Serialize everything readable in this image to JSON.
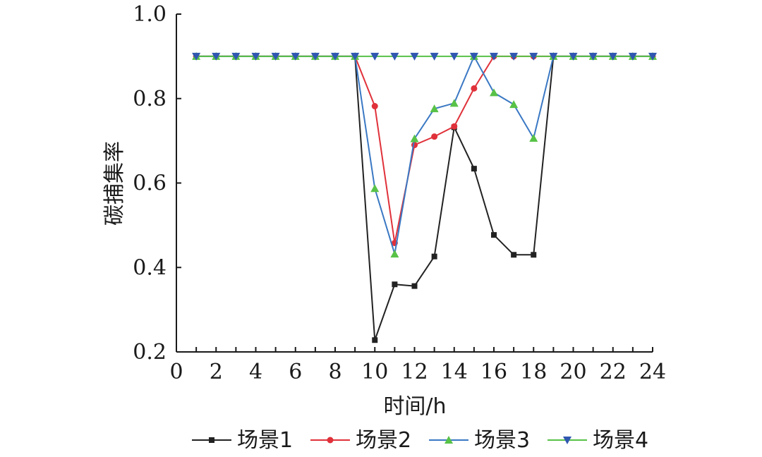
{
  "chart_data": {
    "type": "line",
    "title": "",
    "xlabel": "时间/h",
    "ylabel": "碳捕集率",
    "xlim": [
      0,
      24
    ],
    "ylim": [
      0.2,
      1.0
    ],
    "x_ticks": [
      "0",
      "2",
      "4",
      "6",
      "8",
      "10",
      "12",
      "14",
      "16",
      "18",
      "20",
      "22",
      "24"
    ],
    "y_ticks": [
      "0.2",
      "0.4",
      "0.6",
      "0.8",
      "1.0"
    ],
    "grid": false,
    "legend_position": "bottom",
    "x": [
      1,
      2,
      3,
      4,
      5,
      6,
      7,
      8,
      9,
      10,
      11,
      12,
      13,
      14,
      15,
      16,
      17,
      18,
      19,
      20,
      21,
      22,
      23,
      24
    ],
    "series": [
      {
        "name": "场景1",
        "color": "#222222",
        "marker": "square",
        "values": [
          0.9,
          0.9,
          0.9,
          0.9,
          0.9,
          0.9,
          0.9,
          0.9,
          0.9,
          0.228,
          0.36,
          0.356,
          0.426,
          0.732,
          0.634,
          0.477,
          0.43,
          0.43,
          0.9,
          0.9,
          0.9,
          0.9,
          0.9,
          0.9
        ]
      },
      {
        "name": "场景2",
        "color": "#e0313a",
        "marker": "circle",
        "values": [
          0.9,
          0.9,
          0.9,
          0.9,
          0.9,
          0.9,
          0.9,
          0.9,
          0.9,
          0.782,
          0.458,
          0.69,
          0.71,
          0.734,
          0.824,
          0.9,
          0.9,
          0.9,
          0.9,
          0.9,
          0.9,
          0.9,
          0.9,
          0.9
        ]
      },
      {
        "name": "场景3",
        "color": "#3a78c3",
        "marker_color": "#58c247",
        "marker": "triangle-up",
        "values": [
          0.9,
          0.9,
          0.9,
          0.9,
          0.9,
          0.9,
          0.9,
          0.9,
          0.9,
          0.587,
          0.432,
          0.705,
          0.776,
          0.789,
          0.9,
          0.814,
          0.786,
          0.706,
          0.9,
          0.9,
          0.9,
          0.9,
          0.9,
          0.9
        ]
      },
      {
        "name": "场景4",
        "color": "#58c247",
        "marker_color": "#2f57b0",
        "marker": "triangle-down",
        "values": [
          0.9,
          0.9,
          0.9,
          0.9,
          0.9,
          0.9,
          0.9,
          0.9,
          0.9,
          0.9,
          0.9,
          0.9,
          0.9,
          0.9,
          0.9,
          0.9,
          0.9,
          0.9,
          0.9,
          0.9,
          0.9,
          0.9,
          0.9,
          0.9
        ]
      }
    ]
  }
}
